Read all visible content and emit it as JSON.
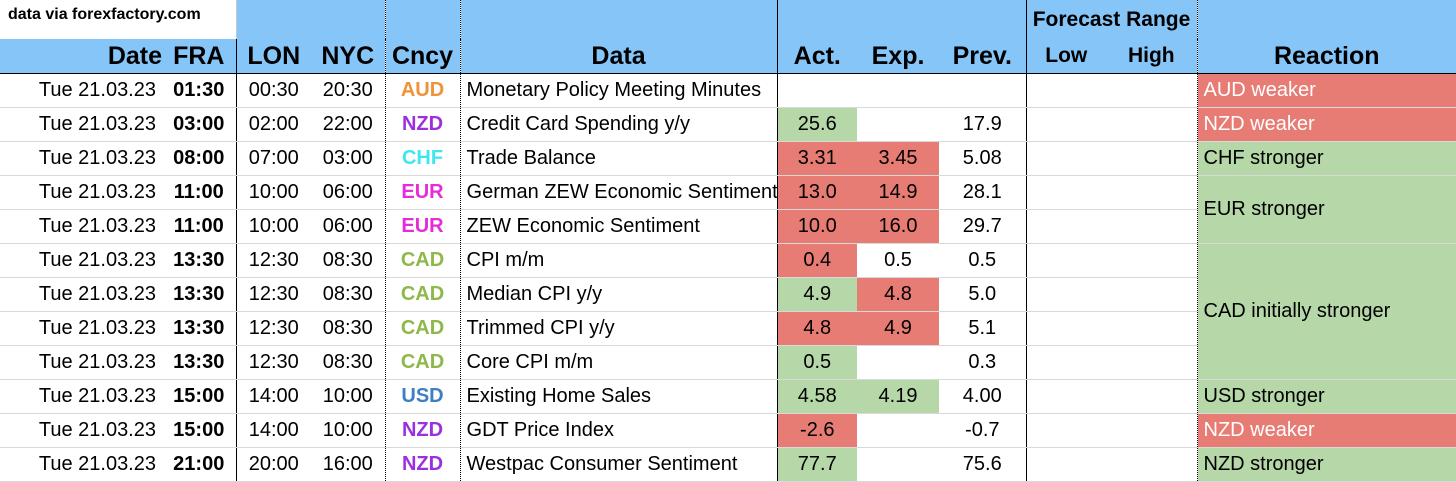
{
  "source_note": "data via forexfactory.com",
  "headers": {
    "date": "Date",
    "fra": "FRA",
    "lon": "LON",
    "nyc": "NYC",
    "cncy": "Cncy",
    "data": "Data",
    "act": "Act.",
    "exp": "Exp.",
    "prev": "Prev.",
    "forecast_range": "Forecast Range",
    "low": "Low",
    "high": "High",
    "reaction": "Reaction"
  },
  "rows": [
    {
      "date": "Tue 21.03.23",
      "fra": "01:30",
      "lon": "00:30",
      "nyc": "20:30",
      "cncy": "AUD",
      "data": "Monetary Policy Meeting Minutes",
      "act": "",
      "exp": "",
      "prev": ""
    },
    {
      "date": "Tue 21.03.23",
      "fra": "03:00",
      "lon": "02:00",
      "nyc": "22:00",
      "cncy": "NZD",
      "data": "Credit Card Spending y/y",
      "act": "25.6",
      "exp": "",
      "prev": "17.9"
    },
    {
      "date": "Tue 21.03.23",
      "fra": "08:00",
      "lon": "07:00",
      "nyc": "03:00",
      "cncy": "CHF",
      "data": "Trade Balance",
      "act": "3.31",
      "exp": "3.45",
      "prev": "5.08"
    },
    {
      "date": "Tue 21.03.23",
      "fra": "11:00",
      "lon": "10:00",
      "nyc": "06:00",
      "cncy": "EUR",
      "data": "German ZEW Economic Sentiment",
      "act": "13.0",
      "exp": "14.9",
      "prev": "28.1"
    },
    {
      "date": "Tue 21.03.23",
      "fra": "11:00",
      "lon": "10:00",
      "nyc": "06:00",
      "cncy": "EUR",
      "data": "ZEW Economic Sentiment",
      "act": "10.0",
      "exp": "16.0",
      "prev": "29.7"
    },
    {
      "date": "Tue 21.03.23",
      "fra": "13:30",
      "lon": "12:30",
      "nyc": "08:30",
      "cncy": "CAD",
      "data": "CPI m/m",
      "act": "0.4",
      "exp": "0.5",
      "prev": "0.5"
    },
    {
      "date": "Tue 21.03.23",
      "fra": "13:30",
      "lon": "12:30",
      "nyc": "08:30",
      "cncy": "CAD",
      "data": "Median CPI y/y",
      "act": "4.9",
      "exp": "4.8",
      "prev": "5.0"
    },
    {
      "date": "Tue 21.03.23",
      "fra": "13:30",
      "lon": "12:30",
      "nyc": "08:30",
      "cncy": "CAD",
      "data": "Trimmed CPI y/y",
      "act": "4.8",
      "exp": "4.9",
      "prev": "5.1"
    },
    {
      "date": "Tue 21.03.23",
      "fra": "13:30",
      "lon": "12:30",
      "nyc": "08:30",
      "cncy": "CAD",
      "data": "Core CPI m/m",
      "act": "0.5",
      "exp": "",
      "prev": "0.3"
    },
    {
      "date": "Tue 21.03.23",
      "fra": "15:00",
      "lon": "14:00",
      "nyc": "10:00",
      "cncy": "USD",
      "data": "Existing Home Sales",
      "act": "4.58",
      "exp": "4.19",
      "prev": "4.00"
    },
    {
      "date": "Tue 21.03.23",
      "fra": "15:00",
      "lon": "14:00",
      "nyc": "10:00",
      "cncy": "NZD",
      "data": "GDT Price Index",
      "act": "-2.6",
      "exp": "",
      "prev": "-0.7"
    },
    {
      "date": "Tue 21.03.23",
      "fra": "21:00",
      "lon": "20:00",
      "nyc": "16:00",
      "cncy": "NZD",
      "data": "Westpac Consumer Sentiment",
      "act": "77.7",
      "exp": "",
      "prev": "75.6"
    }
  ],
  "reactions": {
    "r0": "AUD weaker",
    "r1": "NZD weaker",
    "r2": "CHF stronger",
    "r3": "EUR stronger",
    "r4": "CAD initially stronger",
    "r5": "USD stronger",
    "r6": "NZD weaker",
    "r7": "NZD stronger"
  },
  "colors": {
    "header_bg": "#86c5f7",
    "positive": "#b6d7a8",
    "negative": "#e67c73",
    "AUD": "#f0923a",
    "NZD": "#9b30e0",
    "CHF": "#3ee6f0",
    "EUR": "#e62bd8",
    "CAD": "#8fb84a",
    "USD": "#3d7ec4"
  }
}
